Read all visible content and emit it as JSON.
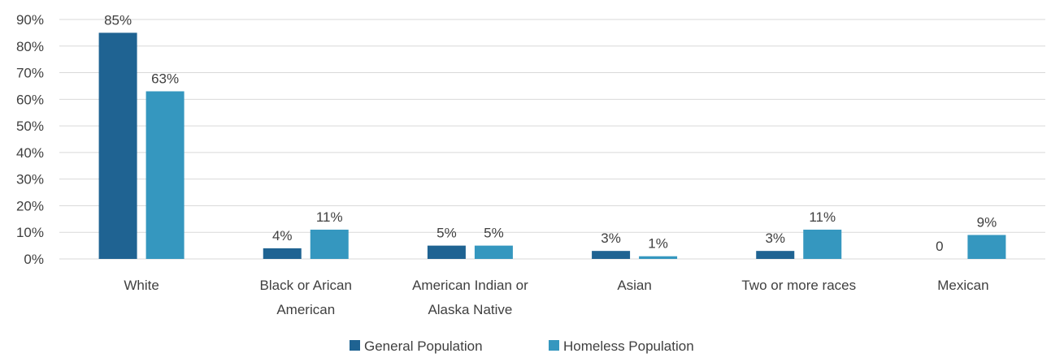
{
  "chart_data": {
    "type": "bar",
    "categories": [
      [
        "White"
      ],
      [
        "Black or Arican",
        "American"
      ],
      [
        "American Indian or",
        "Alaska Native"
      ],
      [
        "Asian"
      ],
      [
        "Two or more races"
      ],
      [
        "Mexican"
      ]
    ],
    "series": [
      {
        "name": "General Population",
        "color": "#1f6392",
        "values": [
          85,
          4,
          5,
          3,
          3,
          0
        ],
        "labels": [
          "85%",
          "4%",
          "5%",
          "3%",
          "3%",
          "0"
        ]
      },
      {
        "name": "Homeless Population",
        "color": "#3597bf",
        "values": [
          63,
          11,
          5,
          1,
          11,
          9
        ],
        "labels": [
          "63%",
          "11%",
          "5%",
          "1%",
          "11%",
          "9%"
        ]
      }
    ],
    "ylim": [
      0,
      90
    ],
    "yticks": [
      0,
      10,
      20,
      30,
      40,
      50,
      60,
      70,
      80,
      90
    ],
    "ytick_labels": [
      "0%",
      "10%",
      "20%",
      "30%",
      "40%",
      "50%",
      "60%",
      "70%",
      "80%",
      "90%"
    ],
    "grid": true,
    "grid_color": "#d9d9d9",
    "legend_position": "bottom-center",
    "title": "",
    "xlabel": "",
    "ylabel": ""
  }
}
